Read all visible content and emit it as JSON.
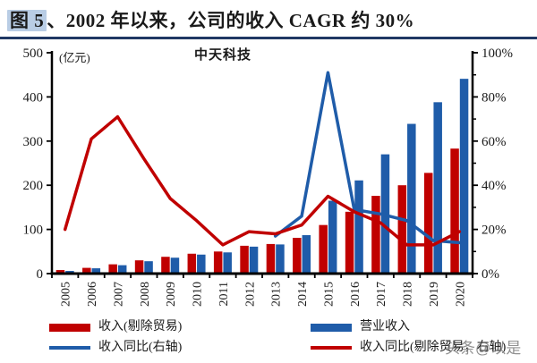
{
  "header": {
    "fig_label": "图 5",
    "title_text": "、2002 年以来，公司的收入 CAGR 约 30%"
  },
  "chart": {
    "inner_title": "中天科技",
    "left_axis_unit": "(亿元)",
    "left_ticks": [
      "500",
      "400",
      "300",
      "200",
      "100",
      "0"
    ],
    "right_ticks": [
      "100%",
      "80%",
      "60%",
      "40%",
      "20%",
      "0%"
    ]
  },
  "chart_data": {
    "type": "bar+line combo, dual axis",
    "title": "中天科技",
    "left_axis_label": "(亿元)",
    "left_ylim": [
      0,
      500
    ],
    "right_ylim_percent": [
      0,
      100
    ],
    "grid": false,
    "legend_position": "bottom",
    "categories": [
      "2005",
      "2006",
      "2007",
      "2008",
      "2009",
      "2010",
      "2011",
      "2012",
      "2013",
      "2014",
      "2015",
      "2016",
      "2017",
      "2018",
      "2019",
      "2020"
    ],
    "series": [
      {
        "name": "收入(剔除贸易)",
        "type": "bar",
        "axis": "left",
        "unit": "亿元",
        "color": "#c00000",
        "values": [
          8,
          13,
          21,
          30,
          38,
          45,
          50,
          63,
          67,
          81,
          110,
          140,
          176,
          200,
          228,
          283
        ]
      },
      {
        "name": "营业收入",
        "type": "bar",
        "axis": "left",
        "unit": "亿元",
        "color": "#1f5ca9",
        "values": [
          6,
          12,
          19,
          28,
          36,
          43,
          48,
          61,
          66,
          87,
          165,
          211,
          270,
          339,
          388,
          441
        ]
      },
      {
        "name": "收入同比(右轴)",
        "type": "line",
        "axis": "right",
        "unit": "%",
        "color": "#1f5ca9",
        "values": [
          null,
          null,
          null,
          null,
          null,
          null,
          null,
          null,
          17,
          26,
          91,
          29,
          27,
          24,
          15,
          14
        ]
      },
      {
        "name": "收入同比(剔除贸易，右轴)",
        "type": "line",
        "axis": "right",
        "unit": "%",
        "color": "#c00000",
        "values": [
          20,
          61,
          71,
          52,
          34,
          24,
          13,
          19,
          18,
          22,
          35,
          28,
          23,
          13,
          13,
          19
        ]
      }
    ]
  },
  "legend": {
    "items": [
      {
        "label": "收入(剔除贸易)",
        "marker": "bar",
        "color": "#c00000"
      },
      {
        "label": "营业收入",
        "marker": "bar",
        "color": "#1f5ca9"
      },
      {
        "label": "收入同比(右轴)",
        "marker": "line",
        "color": "#1f5ca9"
      },
      {
        "label": "收入同比(剔除贸易，右轴)",
        "marker": "line",
        "color": "#c00000"
      }
    ]
  },
  "watermark": "头条@以是",
  "colors": {
    "bar_red": "#c00000",
    "bar_blue": "#1f5ca9",
    "title_underline": "#1f3864",
    "fig_highlight": "#b9cde5",
    "axis": "#000000"
  }
}
